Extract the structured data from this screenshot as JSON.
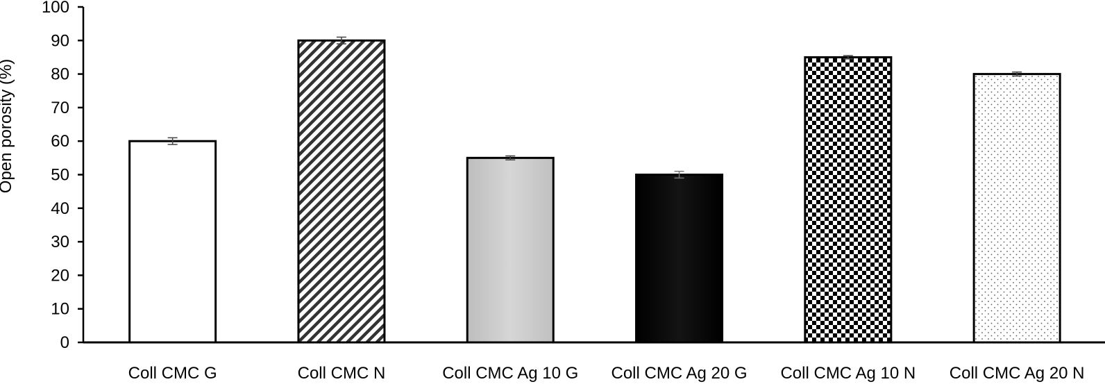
{
  "chart_data": {
    "type": "bar",
    "title": "",
    "xlabel": "",
    "ylabel": "Open porosity (%)",
    "ylim": [
      0,
      100
    ],
    "yticks": [
      0,
      10,
      20,
      30,
      40,
      50,
      60,
      70,
      80,
      90,
      100
    ],
    "categories": [
      "Coll CMC G",
      "Coll CMC N",
      "Coll CMC Ag 10 G",
      "Coll CMC Ag 20 G",
      "Coll CMC Ag 10 N",
      "Coll CMC Ag 20 N"
    ],
    "values": [
      60,
      90,
      55,
      50,
      85,
      80
    ],
    "errors": [
      1,
      1,
      0.6,
      1,
      0.5,
      0.6
    ],
    "fills": [
      "white",
      "diagonal-stripes",
      "light-gray-gradient",
      "black-gradient",
      "checkerboard",
      "dots"
    ],
    "grid": false,
    "legend": "none"
  }
}
